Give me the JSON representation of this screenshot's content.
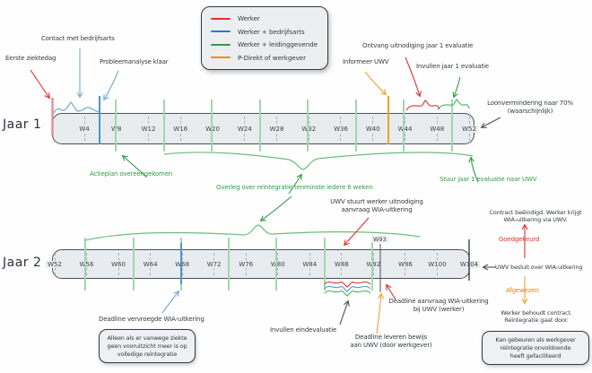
{
  "colors": {
    "red": "#e03131",
    "blue_line": "#4b96cc",
    "blue_arrow": "#72a8d5",
    "green_text": "#2f9e44",
    "green_line_light": "#9fd8ac",
    "green_brace": "#6cbd7e",
    "orange": "#f08c00",
    "dark": "#343a40",
    "bar_fill": "#e9ecef",
    "bar_border": "#495057"
  },
  "legend": {
    "items": [
      {
        "label": "Werker",
        "color": "#e03131"
      },
      {
        "label": "Werker + bedrijfsarts",
        "color": "#1c7ed6"
      },
      {
        "label": "Werker + leidinggevende",
        "color": "#2f9e44"
      },
      {
        "label": "P-Direkt of werkgever",
        "color": "#f08c00"
      }
    ]
  },
  "timelines": {
    "jaar1": {
      "title": "Jaar 1",
      "weeks": [
        "W4",
        "W8",
        "W12",
        "W16",
        "W20",
        "W24",
        "W28",
        "W32",
        "W36",
        "W40",
        "W44",
        "W48",
        "W52"
      ]
    },
    "jaar2": {
      "title": "Jaar 2",
      "weeks": [
        "W52",
        "W56",
        "W60",
        "W64",
        "W68",
        "W72",
        "W76",
        "W80",
        "W84",
        "W88",
        "W92",
        "W96",
        "W100",
        "W104"
      ],
      "marker_label": "W93"
    }
  },
  "annotations": {
    "eerste_ziektedag": "Eerste ziektedag",
    "contact_bedrijfsarts": "Contact met bedrijfsarts",
    "probleemanalyse_klaar": "Probleemanalyse klaar",
    "informeer_uwv": "Informeer UWV",
    "ontvang_uitnodiging_jaar1": "Ontvang uitnodiging jaar 1 evaluatie",
    "invullen_jaar1": "Invullen jaar 1 evaluatie",
    "loonvermindering": "Loonvermindering naar 70%\n(waarschijnlijk)",
    "actieplan": "Actieplan overeengekomen",
    "overleg_6_weken": "Overleg over reïntegratie tenminste iedere 6 weken",
    "stuur_jaar1_naar_uwv": "Stuur jaar 1 evaluatie naar UWV",
    "uwv_stuurt_uitnodiging": "UWV stuurt werker uitnodiging\naanvraag WIA-uitkering",
    "contract_beeindigd": "Contract beëindigd. Werker krijgt\nWIA-uitkering via UWV.",
    "goedgekeurd": "Goedgekeurd",
    "uwv_besluit": "UWV besluit over WIA-uitkering",
    "afgewezen": "Afgewezen",
    "werker_behoudt": "Werker behoudt contract.\nReïntegratie gaat door.",
    "note_boete": "Kan gebeuren als werkgever\nreïntegratie onvoldoende\nheeft gefaciliteerd",
    "deadline_vervroegde_wia": "Deadline vervroegde WIA-uitkering",
    "note_vervroegd": "Alleen als er vanwege ziekte\ngeen vooruitzicht meer is op\nvolledige reïntegratie",
    "invullen_eindevaluatie": "Invullen eindevaluatie",
    "deadline_aanvraag_wia": "Deadline aanvraag WIA-uitkering\nbij UWV (werker)",
    "deadline_leveren_bewijs": "Deadline leveren bewijs\naan UWV (door werkgever)"
  }
}
